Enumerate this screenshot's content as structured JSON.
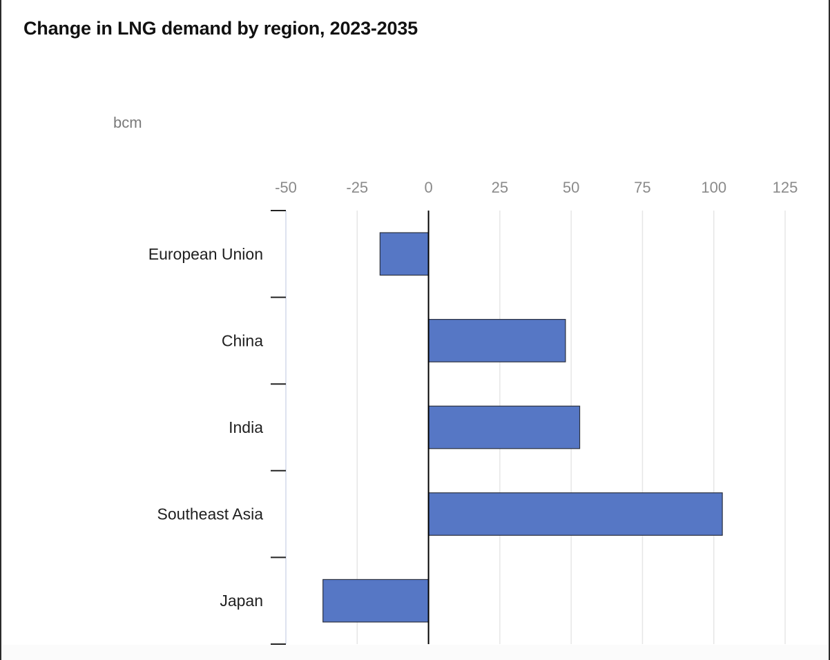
{
  "chart_data": {
    "type": "bar",
    "orientation": "horizontal",
    "title": "Change in LNG demand by region, 2023-2035",
    "unit_label": "bcm",
    "xlabel": "",
    "ylabel": "",
    "categories": [
      "European Union",
      "China",
      "India",
      "Southeast Asia",
      "Japan"
    ],
    "values": [
      -17,
      48,
      53,
      103,
      -37
    ],
    "xlim": [
      -50,
      125
    ],
    "x_ticks": [
      -50,
      -25,
      0,
      25,
      50,
      75,
      100,
      125
    ],
    "x_tick_labels": [
      "-50",
      "-25",
      "0",
      "25",
      "50",
      "75",
      "100",
      "125"
    ],
    "x_axis_position": "top",
    "grid": true,
    "legend": "none",
    "bar_color": "#5677c5",
    "bar_stroke": "#2a2f3d",
    "grid_color": "#e6e6e6",
    "zero_line_color": "#000000"
  }
}
